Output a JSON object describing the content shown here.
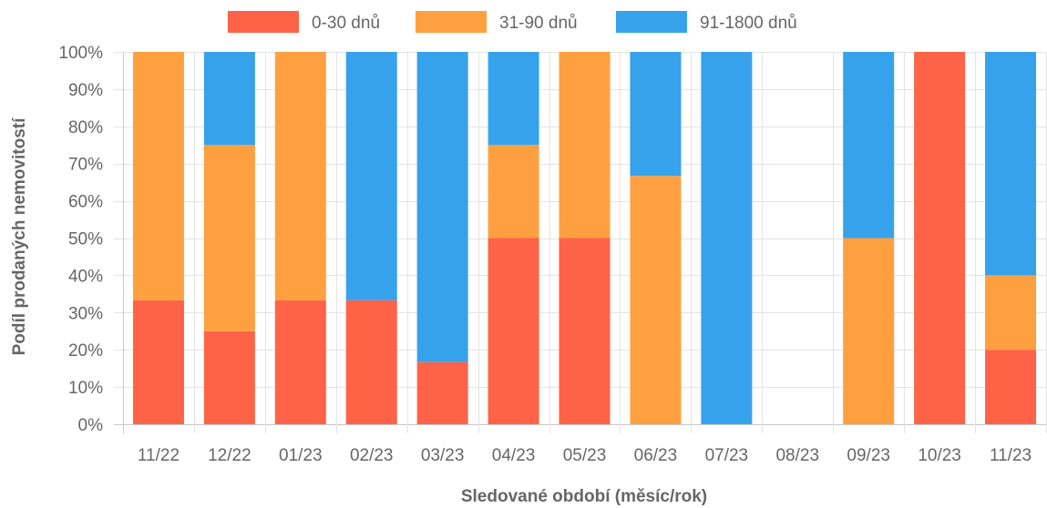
{
  "chart_data": {
    "type": "bar",
    "stacked": true,
    "categories": [
      "11/22",
      "12/22",
      "01/23",
      "02/23",
      "03/23",
      "04/23",
      "05/23",
      "06/23",
      "07/23",
      "08/23",
      "09/23",
      "10/23",
      "11/23"
    ],
    "series": [
      {
        "name": "0-30 dnů",
        "color": "#ff6347",
        "values": [
          33.3,
          25,
          33.3,
          33.3,
          16.7,
          50,
          50,
          0,
          0,
          0,
          0,
          100,
          20
        ]
      },
      {
        "name": "31-90 dnů",
        "color": "#ffa040",
        "values": [
          66.7,
          50,
          66.7,
          0,
          0,
          25,
          50,
          66.7,
          0,
          0,
          50,
          0,
          20
        ]
      },
      {
        "name": "91-1800 dnů",
        "color": "#36a2eb",
        "values": [
          0,
          25,
          0,
          66.7,
          83.3,
          25,
          0,
          33.3,
          100,
          0,
          50,
          0,
          60
        ]
      }
    ],
    "y_ticks": [
      "0%",
      "10%",
      "20%",
      "30%",
      "40%",
      "50%",
      "60%",
      "70%",
      "80%",
      "90%",
      "100%"
    ],
    "ylim": [
      0,
      100
    ],
    "xlabel": "Sledované období (měsíc/rok)",
    "ylabel": "Podíl prodaných nemovitostí",
    "grid": true,
    "legend_position": "top"
  }
}
